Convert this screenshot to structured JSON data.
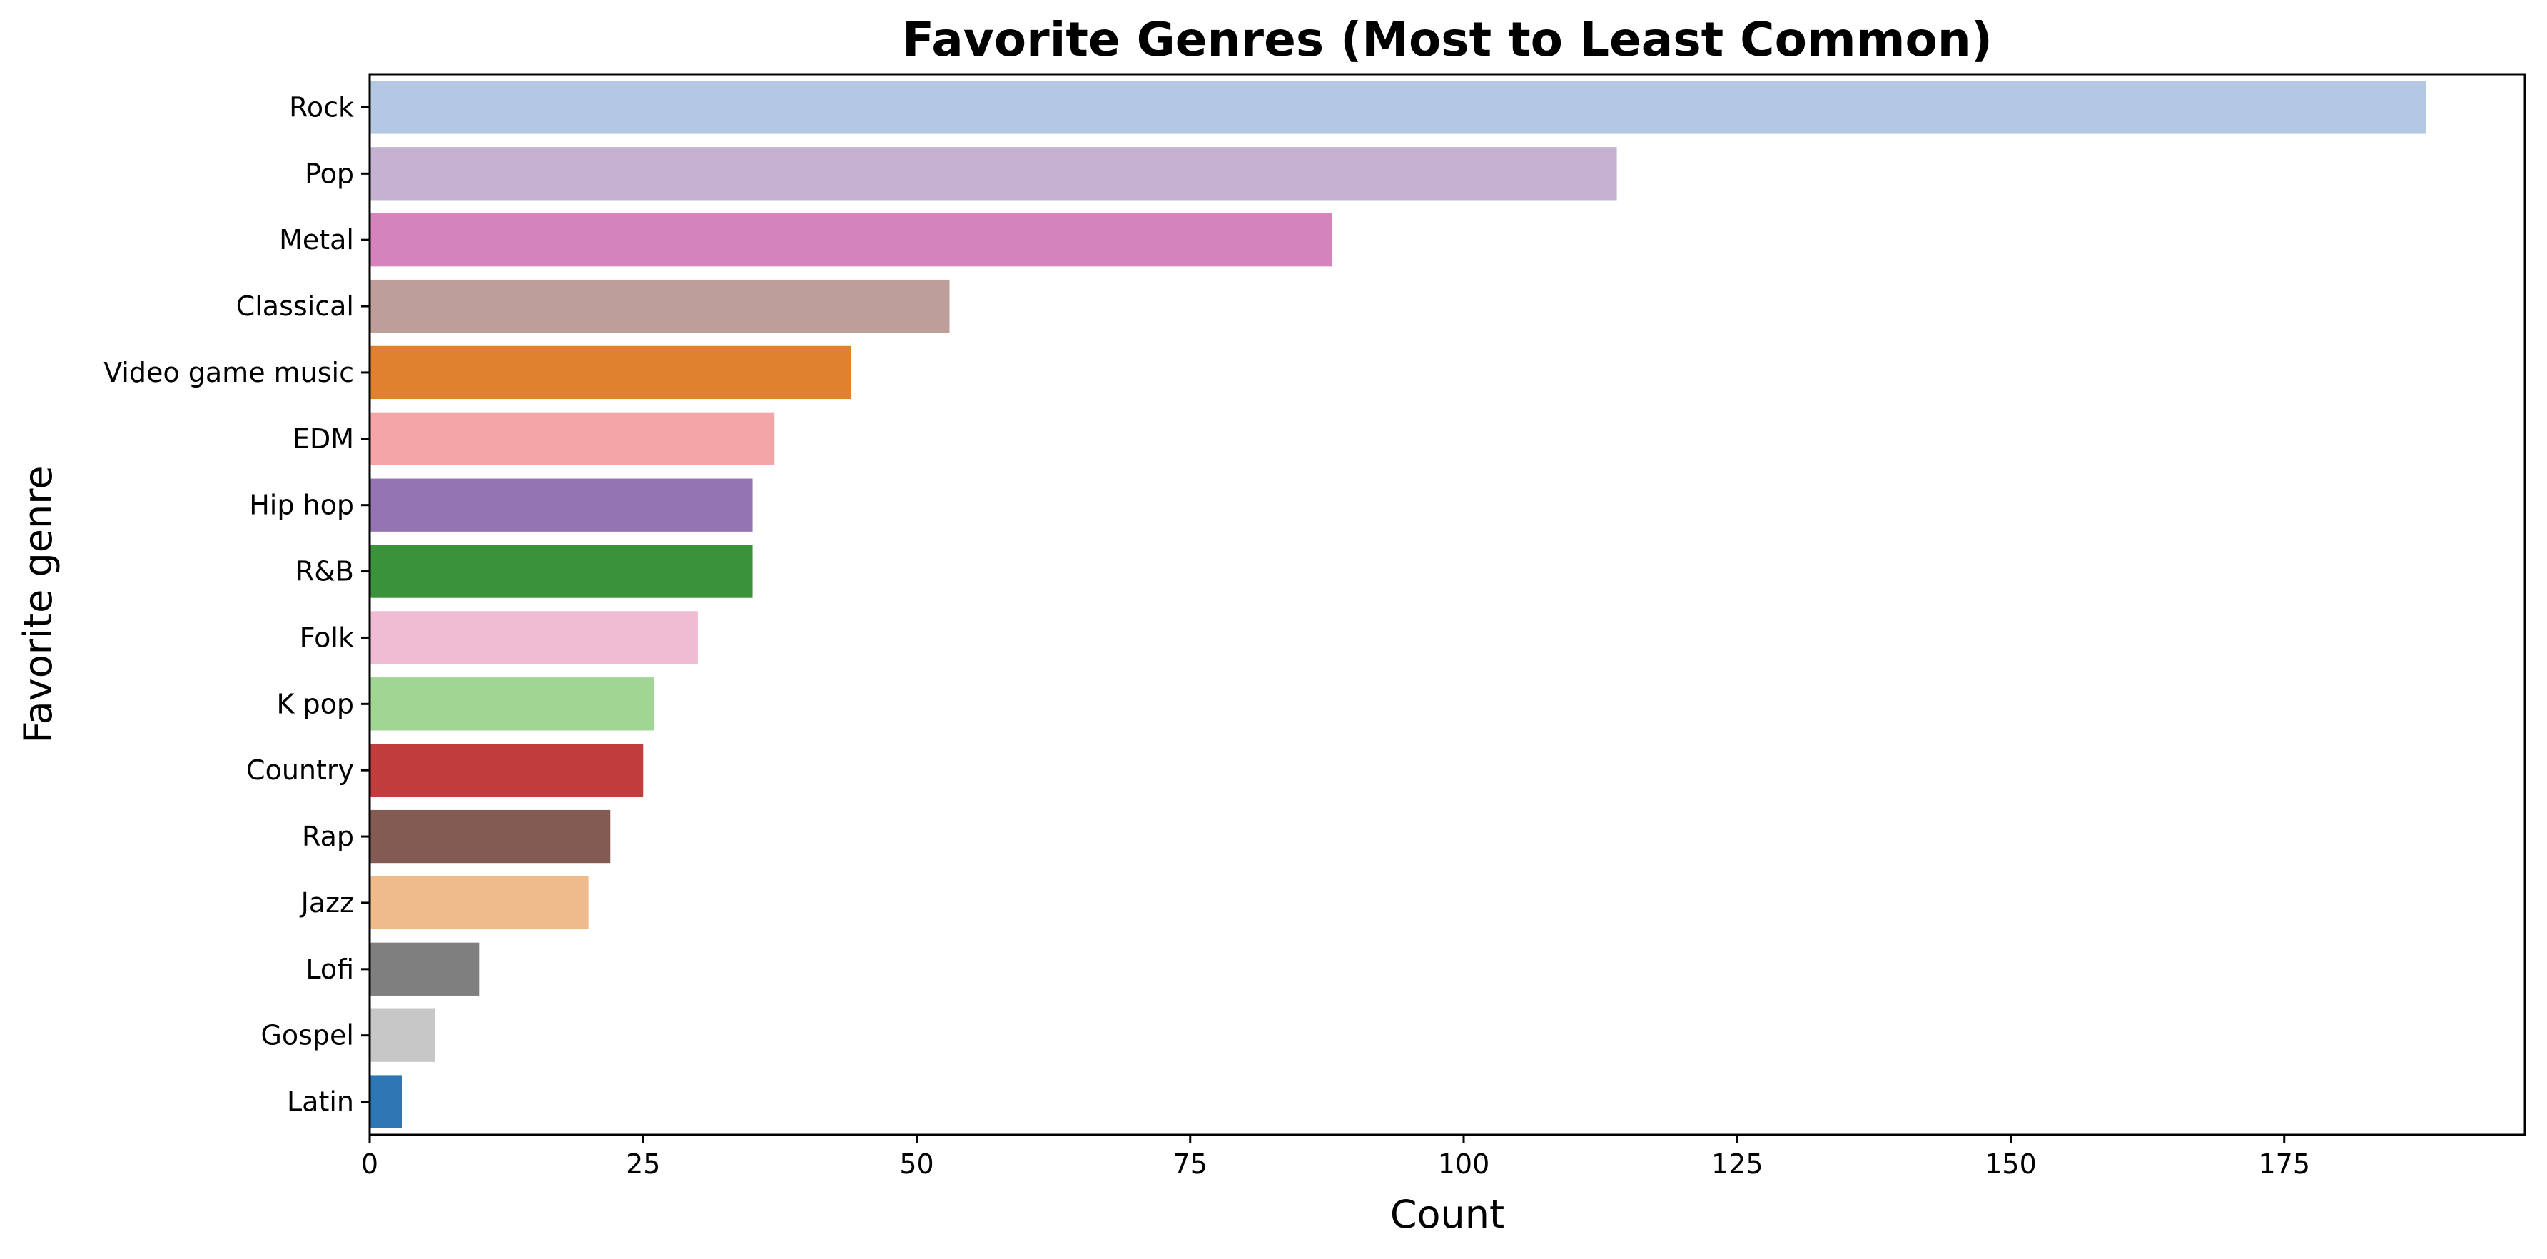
{
  "chart_data": {
    "type": "bar",
    "orientation": "horizontal",
    "title": "Favorite Genres (Most to Least Common)",
    "xlabel": "Count",
    "ylabel": "Favorite genre",
    "xlim": [
      0,
      197
    ],
    "xticks": [
      0,
      25,
      50,
      75,
      100,
      125,
      150,
      175
    ],
    "grid": false,
    "categories": [
      "Rock",
      "Pop",
      "Metal",
      "Classical",
      "Video game music",
      "EDM",
      "Hip hop",
      "R&B",
      "Folk",
      "K pop",
      "Country",
      "Rap",
      "Jazz",
      "Lofi",
      "Gospel",
      "Latin"
    ],
    "values": [
      188,
      114,
      88,
      53,
      44,
      37,
      35,
      35,
      30,
      26,
      25,
      22,
      20,
      10,
      6,
      3
    ],
    "colors": [
      "#b5c8e3",
      "#c5b2d0",
      "#d583bd",
      "#be9e98",
      "#e0812e",
      "#f4a5a5",
      "#9474b2",
      "#3a923a",
      "#f0bcd4",
      "#a0d594",
      "#c13c3d",
      "#845b53",
      "#f0bb8a",
      "#7f7f7f",
      "#c7c7c7",
      "#2e77b4"
    ]
  }
}
